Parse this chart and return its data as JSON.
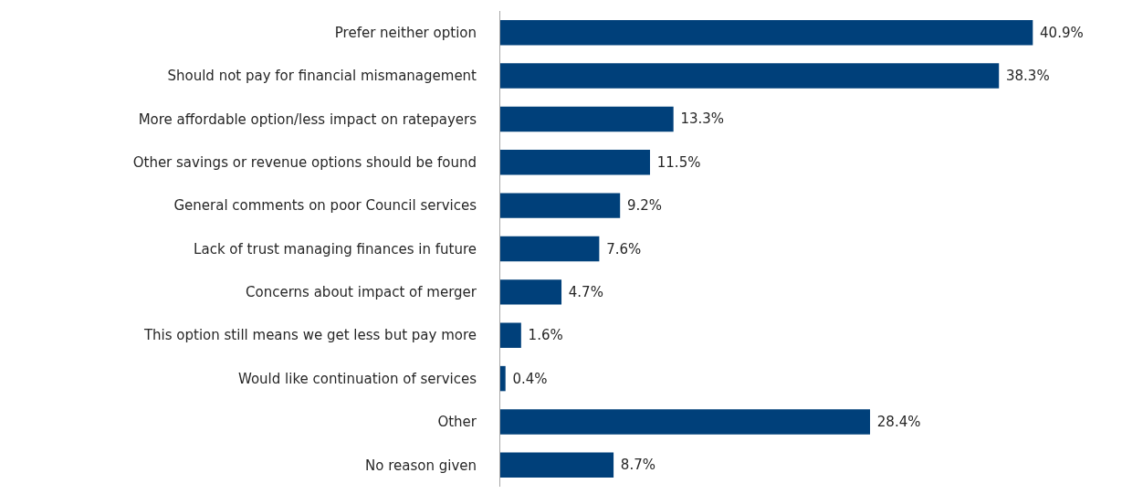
{
  "chart_data": {
    "type": "bar",
    "orientation": "horizontal",
    "categories": [
      "Prefer neither option",
      "Should not pay for financial mismanagement",
      "More affordable option/less impact on ratepayers",
      "Other savings or revenue options should be found",
      "General comments on poor Council services",
      "Lack of trust managing finances in future",
      "Concerns about impact of merger",
      "This option still means we get less but pay more",
      "Would like continuation of services",
      "Other",
      "No reason given"
    ],
    "values": [
      40.9,
      38.3,
      13.3,
      11.5,
      9.2,
      7.6,
      4.7,
      1.6,
      0.4,
      28.4,
      8.7
    ],
    "value_labels": [
      "40.9%",
      "38.3%",
      "13.3%",
      "11.5%",
      "9.2%",
      "7.6%",
      "4.7%",
      "1.6%",
      "0.4%",
      "28.4%",
      "8.7%"
    ],
    "color": "#00407a"
  }
}
